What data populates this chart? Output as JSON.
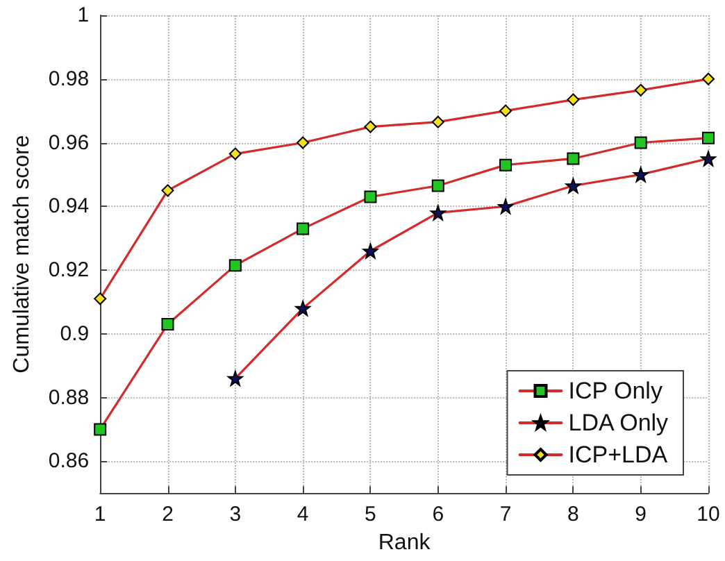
{
  "chart_data": {
    "type": "line",
    "xlabel": "Rank",
    "ylabel": "Cumulative match score",
    "x": [
      1,
      2,
      3,
      4,
      5,
      6,
      7,
      8,
      9,
      10
    ],
    "series": [
      {
        "name": "ICP Only",
        "color": "#d42a2a",
        "marker": "square",
        "colors": [
          "#22c522",
          "#22c522",
          "#22c522",
          "#22c522",
          "#22c522",
          "#22c522",
          "#22c522",
          "#22c522",
          "#22c522",
          "#22c522"
        ],
        "values": [
          0.87,
          0.903,
          0.9215,
          0.933,
          0.943,
          0.9465,
          0.953,
          0.955,
          0.96,
          0.9615
        ]
      },
      {
        "name": "LDA Only",
        "color": "#d42a2a",
        "marker": "star",
        "colors": [
          "#101060",
          "#101060",
          "#101060",
          "#101060",
          "#101060",
          "#101060",
          "#101060",
          "#101060",
          "#101060",
          "#101060"
        ],
        "values": [
          null,
          null,
          0.886,
          0.908,
          0.926,
          0.938,
          0.94,
          0.9465,
          0.95,
          0.955
        ]
      },
      {
        "name": "ICP+LDA",
        "color": "#d42a2a",
        "marker": "diamond",
        "colors": [
          "#f0e020",
          "#f0e020",
          "#f0e020",
          "#f0e020",
          "#f0e020",
          "#f0e020",
          "#f0e020",
          "#f0e020",
          "#f0e020",
          "#f0e020"
        ],
        "values": [
          0.911,
          0.945,
          0.9565,
          0.96,
          0.965,
          0.9665,
          0.97,
          0.9735,
          0.9765,
          0.98
        ]
      }
    ],
    "xlim": [
      1,
      10
    ],
    "xticks": [
      1,
      2,
      3,
      4,
      5,
      6,
      7,
      8,
      9,
      10
    ],
    "ylim": [
      0.85,
      1
    ],
    "yticks": [
      {
        "value": 0.86,
        "label": "0.86"
      },
      {
        "value": 0.88,
        "label": "0.88"
      },
      {
        "value": 0.9,
        "label": "0.9"
      },
      {
        "value": 0.92,
        "label": "0.92"
      },
      {
        "value": 0.94,
        "label": "0.94"
      },
      {
        "value": 0.96,
        "label": "0.96"
      },
      {
        "value": 0.98,
        "label": "0.98"
      },
      {
        "value": 1,
        "label": "1"
      }
    ],
    "grid": true,
    "legend": "bottom right",
    "line_style": "solid"
  }
}
